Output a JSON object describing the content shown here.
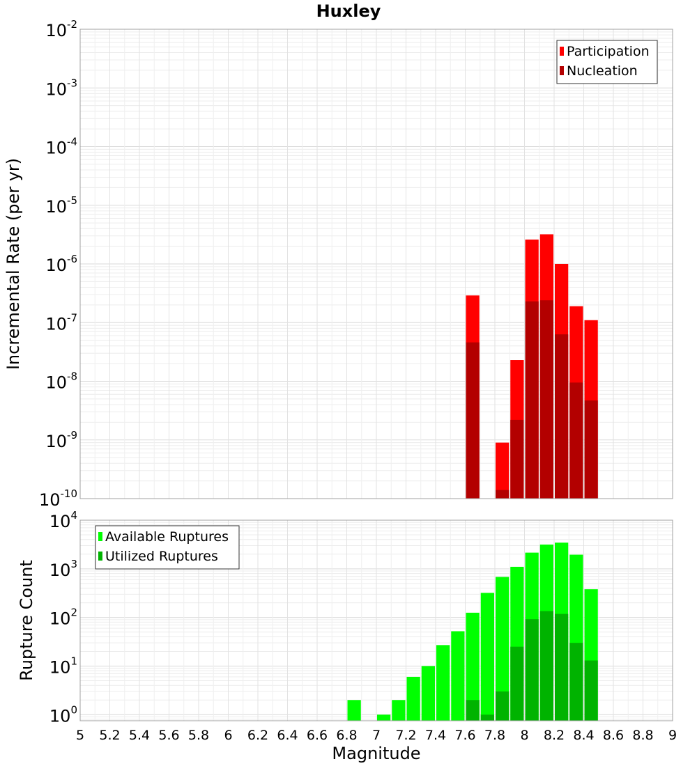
{
  "chart_data": [
    {
      "type": "bar",
      "title": "Huxley",
      "xlabel": "",
      "ylabel": "Incremental Rate (per yr)",
      "yscale": "log",
      "xlim": [
        5,
        9
      ],
      "ylim": [
        1e-10,
        0.01
      ],
      "y_tick_exponents": [
        "-10",
        "-9",
        "-8",
        "-7",
        "-6",
        "-5",
        "-4",
        "-3",
        "-2"
      ],
      "grid": true,
      "legend_position": "top-right",
      "x": [
        7.65,
        7.85,
        7.95,
        8.05,
        8.15,
        8.25,
        8.35,
        8.45
      ],
      "series": [
        {
          "name": "Participation",
          "color": "#ff0000",
          "values": [
            2.9e-07,
            9e-10,
            2.3e-08,
            2.6e-06,
            3.2e-06,
            1e-06,
            1.9e-07,
            1.1e-07
          ]
        },
        {
          "name": "Nucleation",
          "color": "#b30000",
          "values": [
            4.6e-08,
            1.4e-10,
            2.2e-09,
            2.3e-07,
            2.4e-07,
            6.3e-08,
            9.5e-09,
            4.7e-09
          ]
        }
      ]
    },
    {
      "type": "bar",
      "title": "",
      "xlabel": "Magnitude",
      "ylabel": "Rupture Count",
      "yscale": "log",
      "xlim": [
        5,
        9
      ],
      "ylim": [
        0.75,
        10000
      ],
      "x_ticks": [
        "5",
        "5.2",
        "5.4",
        "5.6",
        "5.8",
        "6",
        "6.2",
        "6.4",
        "6.6",
        "6.8",
        "7",
        "7.2",
        "7.4",
        "7.6",
        "7.8",
        "8",
        "8.2",
        "8.4",
        "8.6",
        "8.8",
        "9"
      ],
      "y_tick_exponents": [
        "0",
        "1",
        "2",
        "3",
        "4"
      ],
      "grid": true,
      "legend_position": "top-left",
      "x": [
        6.85,
        7.05,
        7.15,
        7.25,
        7.35,
        7.45,
        7.55,
        7.65,
        7.75,
        7.85,
        7.95,
        8.05,
        8.15,
        8.25,
        8.35,
        8.45
      ],
      "series": [
        {
          "name": "Available Ruptures",
          "color": "#00ff00",
          "values": [
            2,
            1,
            2,
            6,
            10,
            27,
            52,
            125,
            320,
            680,
            1100,
            2150,
            3150,
            3450,
            1950,
            380
          ]
        },
        {
          "name": "Utilized Ruptures",
          "color": "#00b300",
          "values": [
            null,
            null,
            null,
            null,
            null,
            null,
            null,
            2,
            1,
            3,
            25,
            92,
            135,
            118,
            30,
            13
          ]
        }
      ]
    }
  ]
}
